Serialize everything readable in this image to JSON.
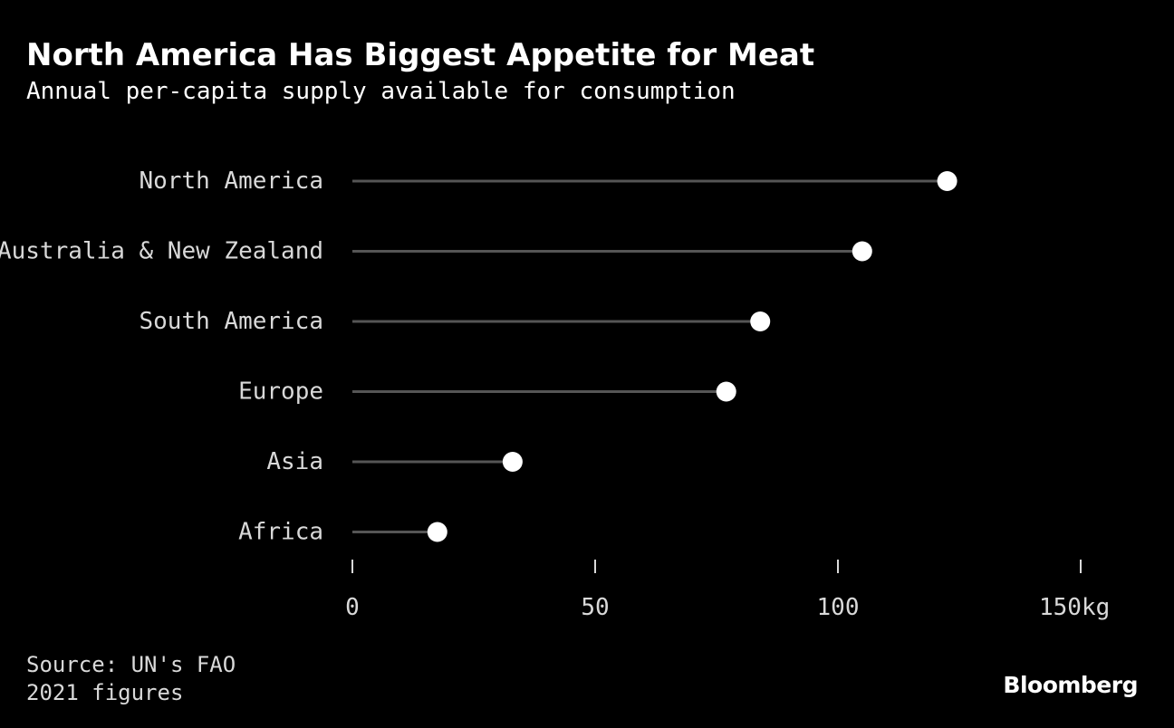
{
  "header": {
    "title": "North America Has Biggest Appetite for Meat",
    "subtitle": "Annual per-capita supply available for consumption"
  },
  "chart_data": {
    "type": "lollipop",
    "orientation": "horizontal",
    "title": "North America Has Biggest Appetite for Meat",
    "subtitle": "Annual per-capita supply available for consumption",
    "categories": [
      "North America",
      "Australia & New Zealand",
      "South America",
      "Europe",
      "Asia",
      "Africa"
    ],
    "values": [
      122.5,
      105,
      84,
      77,
      33,
      17.5
    ],
    "unit": "kg",
    "xlim": [
      0,
      150
    ],
    "x_ticks": [
      0,
      50,
      100,
      150
    ],
    "x_tick_labels": [
      "0",
      "50",
      "100",
      "150kg"
    ],
    "xlabel": "",
    "ylabel": "",
    "grid": false,
    "legend": "none"
  },
  "footer": {
    "source": "Source: UN's FAO",
    "note": "2021 figures",
    "brand": "Bloomberg"
  },
  "colors": {
    "background": "#000000",
    "stem": "#555555",
    "dot": "#ffffff",
    "text": "#d9d9d9",
    "title": "#ffffff"
  }
}
